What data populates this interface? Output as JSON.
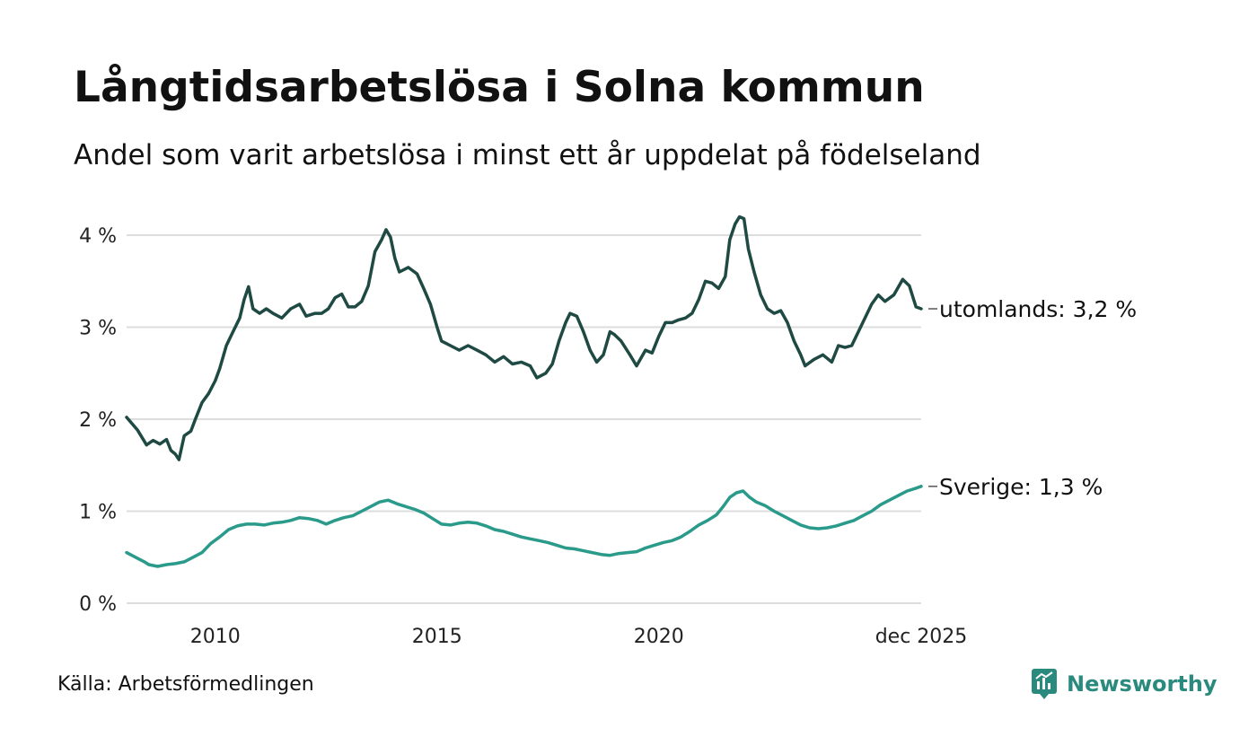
{
  "header": {
    "title": "Långtidsarbetslösa i Solna kommun",
    "subtitle": "Andel som varit arbetslösa i minst ett år uppdelat på födelseland"
  },
  "footer": {
    "source": "Källa: Arbetsförmedlingen",
    "brand": "Newsworthy"
  },
  "colors": {
    "utomlands": "#1f4a43",
    "sverige": "#2a9a8a",
    "grid": "#dddddd",
    "brand": "#2a8a7e"
  },
  "chart_data": {
    "type": "line",
    "title": "Långtidsarbetslösa i Solna kommun",
    "subtitle": "Andel som varit arbetslösa i minst ett år uppdelat på födelseland",
    "x_range": [
      2008.0,
      2025.917
    ],
    "ylim": [
      0,
      4.1
    ],
    "y_ticks": [
      0,
      1,
      2,
      3,
      4
    ],
    "y_tick_labels": [
      "0 %",
      "1 %",
      "2 %",
      "3 %",
      "4 %"
    ],
    "x_ticks": [
      2010,
      2015,
      2020,
      2025.917
    ],
    "x_tick_labels": [
      "2010",
      "2015",
      "2020",
      "dec 2025"
    ],
    "grid": true,
    "series": [
      {
        "name": "utomlands",
        "end_label": "utomlands: 3,2 %",
        "points": [
          [
            2008.0,
            2.02
          ],
          [
            2008.25,
            1.88
          ],
          [
            2008.45,
            1.72
          ],
          [
            2008.6,
            1.77
          ],
          [
            2008.75,
            1.73
          ],
          [
            2008.9,
            1.78
          ],
          [
            2009.0,
            1.66
          ],
          [
            2009.1,
            1.62
          ],
          [
            2009.18,
            1.56
          ],
          [
            2009.3,
            1.82
          ],
          [
            2009.45,
            1.87
          ],
          [
            2009.55,
            2.0
          ],
          [
            2009.7,
            2.18
          ],
          [
            2009.85,
            2.28
          ],
          [
            2010.0,
            2.42
          ],
          [
            2010.1,
            2.55
          ],
          [
            2010.25,
            2.8
          ],
          [
            2010.4,
            2.95
          ],
          [
            2010.55,
            3.1
          ],
          [
            2010.65,
            3.3
          ],
          [
            2010.75,
            3.44
          ],
          [
            2010.85,
            3.2
          ],
          [
            2011.0,
            3.15
          ],
          [
            2011.15,
            3.2
          ],
          [
            2011.3,
            3.15
          ],
          [
            2011.5,
            3.1
          ],
          [
            2011.7,
            3.2
          ],
          [
            2011.9,
            3.25
          ],
          [
            2012.05,
            3.12
          ],
          [
            2012.25,
            3.15
          ],
          [
            2012.4,
            3.15
          ],
          [
            2012.55,
            3.2
          ],
          [
            2012.7,
            3.32
          ],
          [
            2012.85,
            3.36
          ],
          [
            2013.0,
            3.22
          ],
          [
            2013.15,
            3.22
          ],
          [
            2013.3,
            3.28
          ],
          [
            2013.45,
            3.45
          ],
          [
            2013.6,
            3.82
          ],
          [
            2013.75,
            3.95
          ],
          [
            2013.85,
            4.06
          ],
          [
            2013.95,
            3.98
          ],
          [
            2014.05,
            3.75
          ],
          [
            2014.15,
            3.6
          ],
          [
            2014.35,
            3.65
          ],
          [
            2014.55,
            3.58
          ],
          [
            2014.7,
            3.42
          ],
          [
            2014.85,
            3.25
          ],
          [
            2015.0,
            3.0
          ],
          [
            2015.1,
            2.85
          ],
          [
            2015.3,
            2.8
          ],
          [
            2015.5,
            2.75
          ],
          [
            2015.7,
            2.8
          ],
          [
            2015.9,
            2.75
          ],
          [
            2016.1,
            2.7
          ],
          [
            2016.3,
            2.62
          ],
          [
            2016.5,
            2.68
          ],
          [
            2016.7,
            2.6
          ],
          [
            2016.9,
            2.62
          ],
          [
            2017.1,
            2.58
          ],
          [
            2017.25,
            2.45
          ],
          [
            2017.45,
            2.5
          ],
          [
            2017.6,
            2.6
          ],
          [
            2017.75,
            2.85
          ],
          [
            2017.9,
            3.05
          ],
          [
            2018.0,
            3.15
          ],
          [
            2018.15,
            3.12
          ],
          [
            2018.3,
            2.95
          ],
          [
            2018.45,
            2.75
          ],
          [
            2018.6,
            2.62
          ],
          [
            2018.75,
            2.7
          ],
          [
            2018.9,
            2.95
          ],
          [
            2019.0,
            2.92
          ],
          [
            2019.15,
            2.85
          ],
          [
            2019.35,
            2.7
          ],
          [
            2019.5,
            2.58
          ],
          [
            2019.7,
            2.75
          ],
          [
            2019.85,
            2.72
          ],
          [
            2020.0,
            2.9
          ],
          [
            2020.15,
            3.05
          ],
          [
            2020.3,
            3.05
          ],
          [
            2020.45,
            3.08
          ],
          [
            2020.6,
            3.1
          ],
          [
            2020.75,
            3.15
          ],
          [
            2020.9,
            3.3
          ],
          [
            2021.05,
            3.5
          ],
          [
            2021.2,
            3.48
          ],
          [
            2021.35,
            3.42
          ],
          [
            2021.5,
            3.55
          ],
          [
            2021.6,
            3.95
          ],
          [
            2021.72,
            4.12
          ],
          [
            2021.82,
            4.2
          ],
          [
            2021.92,
            4.18
          ],
          [
            2022.02,
            3.85
          ],
          [
            2022.15,
            3.6
          ],
          [
            2022.3,
            3.35
          ],
          [
            2022.45,
            3.2
          ],
          [
            2022.6,
            3.15
          ],
          [
            2022.75,
            3.18
          ],
          [
            2022.9,
            3.05
          ],
          [
            2023.05,
            2.85
          ],
          [
            2023.2,
            2.7
          ],
          [
            2023.3,
            2.58
          ],
          [
            2023.5,
            2.65
          ],
          [
            2023.7,
            2.7
          ],
          [
            2023.9,
            2.62
          ],
          [
            2024.05,
            2.8
          ],
          [
            2024.2,
            2.78
          ],
          [
            2024.35,
            2.8
          ],
          [
            2024.5,
            2.95
          ],
          [
            2024.65,
            3.1
          ],
          [
            2024.8,
            3.25
          ],
          [
            2024.95,
            3.35
          ],
          [
            2025.1,
            3.28
          ],
          [
            2025.3,
            3.35
          ],
          [
            2025.5,
            3.52
          ],
          [
            2025.65,
            3.45
          ],
          [
            2025.8,
            3.22
          ],
          [
            2025.917,
            3.2
          ]
        ]
      },
      {
        "name": "Sverige",
        "end_label": "Sverige: 1,3 %",
        "points": [
          [
            2008.0,
            0.55
          ],
          [
            2008.2,
            0.5
          ],
          [
            2008.4,
            0.45
          ],
          [
            2008.5,
            0.42
          ],
          [
            2008.7,
            0.4
          ],
          [
            2008.9,
            0.42
          ],
          [
            2009.1,
            0.43
          ],
          [
            2009.3,
            0.45
          ],
          [
            2009.5,
            0.5
          ],
          [
            2009.7,
            0.55
          ],
          [
            2009.9,
            0.65
          ],
          [
            2010.1,
            0.72
          ],
          [
            2010.3,
            0.8
          ],
          [
            2010.5,
            0.84
          ],
          [
            2010.7,
            0.86
          ],
          [
            2010.9,
            0.86
          ],
          [
            2011.1,
            0.85
          ],
          [
            2011.3,
            0.87
          ],
          [
            2011.5,
            0.88
          ],
          [
            2011.7,
            0.9
          ],
          [
            2011.9,
            0.93
          ],
          [
            2012.1,
            0.92
          ],
          [
            2012.3,
            0.9
          ],
          [
            2012.5,
            0.86
          ],
          [
            2012.7,
            0.9
          ],
          [
            2012.9,
            0.93
          ],
          [
            2013.1,
            0.95
          ],
          [
            2013.3,
            1.0
          ],
          [
            2013.5,
            1.05
          ],
          [
            2013.7,
            1.1
          ],
          [
            2013.9,
            1.12
          ],
          [
            2014.1,
            1.08
          ],
          [
            2014.3,
            1.05
          ],
          [
            2014.5,
            1.02
          ],
          [
            2014.7,
            0.98
          ],
          [
            2014.9,
            0.92
          ],
          [
            2015.1,
            0.86
          ],
          [
            2015.3,
            0.85
          ],
          [
            2015.5,
            0.87
          ],
          [
            2015.7,
            0.88
          ],
          [
            2015.9,
            0.87
          ],
          [
            2016.1,
            0.84
          ],
          [
            2016.3,
            0.8
          ],
          [
            2016.5,
            0.78
          ],
          [
            2016.7,
            0.75
          ],
          [
            2016.9,
            0.72
          ],
          [
            2017.1,
            0.7
          ],
          [
            2017.3,
            0.68
          ],
          [
            2017.5,
            0.66
          ],
          [
            2017.7,
            0.63
          ],
          [
            2017.9,
            0.6
          ],
          [
            2018.1,
            0.59
          ],
          [
            2018.3,
            0.57
          ],
          [
            2018.5,
            0.55
          ],
          [
            2018.7,
            0.53
          ],
          [
            2018.9,
            0.52
          ],
          [
            2019.1,
            0.54
          ],
          [
            2019.3,
            0.55
          ],
          [
            2019.5,
            0.56
          ],
          [
            2019.7,
            0.6
          ],
          [
            2019.9,
            0.63
          ],
          [
            2020.1,
            0.66
          ],
          [
            2020.3,
            0.68
          ],
          [
            2020.5,
            0.72
          ],
          [
            2020.7,
            0.78
          ],
          [
            2020.9,
            0.85
          ],
          [
            2021.1,
            0.9
          ],
          [
            2021.3,
            0.96
          ],
          [
            2021.45,
            1.05
          ],
          [
            2021.6,
            1.15
          ],
          [
            2021.75,
            1.2
          ],
          [
            2021.9,
            1.22
          ],
          [
            2022.05,
            1.15
          ],
          [
            2022.2,
            1.1
          ],
          [
            2022.4,
            1.06
          ],
          [
            2022.6,
            1.0
          ],
          [
            2022.8,
            0.95
          ],
          [
            2023.0,
            0.9
          ],
          [
            2023.2,
            0.85
          ],
          [
            2023.4,
            0.82
          ],
          [
            2023.6,
            0.81
          ],
          [
            2023.8,
            0.82
          ],
          [
            2024.0,
            0.84
          ],
          [
            2024.2,
            0.87
          ],
          [
            2024.4,
            0.9
          ],
          [
            2024.6,
            0.95
          ],
          [
            2024.8,
            1.0
          ],
          [
            2025.0,
            1.07
          ],
          [
            2025.2,
            1.12
          ],
          [
            2025.4,
            1.17
          ],
          [
            2025.6,
            1.22
          ],
          [
            2025.8,
            1.25
          ],
          [
            2025.917,
            1.27
          ]
        ]
      }
    ]
  }
}
